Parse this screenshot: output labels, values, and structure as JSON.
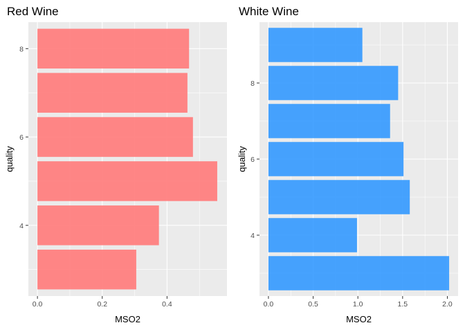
{
  "chart_data": [
    {
      "type": "bar",
      "orientation": "horizontal",
      "title": "Red Wine",
      "xlabel": "MSO2",
      "ylabel": "quality",
      "categories": [
        3,
        4,
        5,
        6,
        7,
        8
      ],
      "values": [
        0.305,
        0.375,
        0.555,
        0.48,
        0.463,
        0.468
      ],
      "bar_color": "#ff7f7f",
      "xlim": [
        -0.028,
        0.585
      ],
      "ylim": [
        2.4,
        8.6
      ],
      "xticks": [
        0.0,
        0.2,
        0.4
      ],
      "xtick_labels": [
        "0.0",
        "0.2",
        "0.4"
      ],
      "yticks": [
        4,
        6,
        8
      ],
      "ytick_labels": [
        "4",
        "6",
        "8"
      ],
      "grid": true
    },
    {
      "type": "bar",
      "orientation": "horizontal",
      "title": "White Wine",
      "xlabel": "MSO2",
      "ylabel": "quality",
      "categories": [
        3,
        4,
        5,
        6,
        7,
        8,
        9
      ],
      "values": [
        2.02,
        0.99,
        1.58,
        1.51,
        1.36,
        1.45,
        1.05
      ],
      "bar_color": "#3399ff",
      "xlim": [
        -0.1,
        2.12
      ],
      "ylim": [
        2.4,
        9.6
      ],
      "xticks": [
        0.0,
        0.5,
        1.0,
        1.5,
        2.0
      ],
      "xtick_labels": [
        "0.0",
        "0.5",
        "1.0",
        "1.5",
        "2.0"
      ],
      "yticks": [
        4,
        6,
        8
      ],
      "ytick_labels": [
        "4",
        "6",
        "8"
      ],
      "grid": true
    }
  ]
}
